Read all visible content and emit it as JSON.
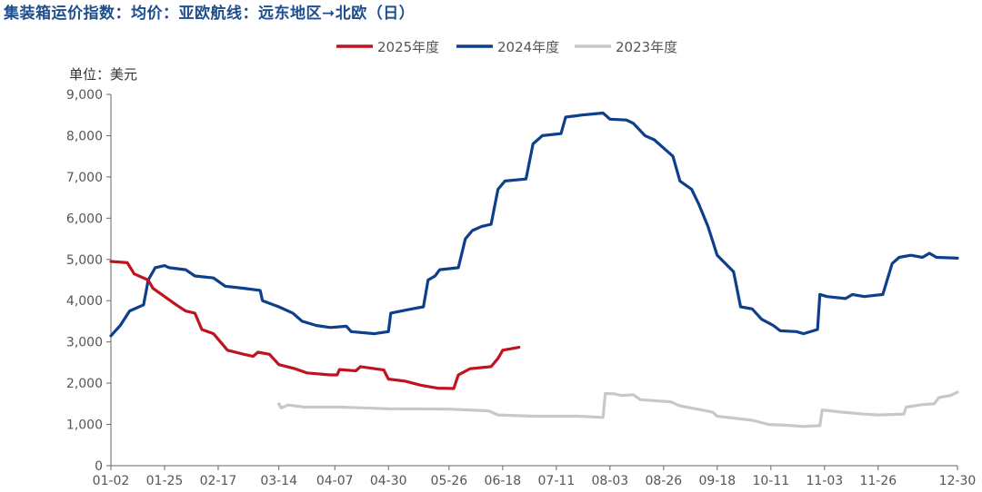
{
  "chart_data": {
    "type": "line",
    "title": "集装箱运价指数：均价：亚欧航线：远东地区➞北欧（日）",
    "unit": "单位：美元",
    "x_ticks": [
      "01-02",
      "01-25",
      "02-17",
      "03-14",
      "04-07",
      "04-30",
      "05-26",
      "06-18",
      "07-11",
      "08-03",
      "08-26",
      "09-18",
      "10-11",
      "11-03",
      "11-26",
      "12-30"
    ],
    "ylim": [
      0,
      9000
    ],
    "y_ticks": [
      "0",
      "1,000",
      "2,000",
      "3,000",
      "4,000",
      "5,000",
      "6,000",
      "7,000",
      "8,000",
      "9,000"
    ],
    "legend_position": "top-center",
    "grid": false,
    "series": [
      {
        "name": "2025年度",
        "color": "#c0121f",
        "points": [
          [
            "01-02",
            4950
          ],
          [
            "01-09",
            4920
          ],
          [
            "01-12",
            4650
          ],
          [
            "01-18",
            4500
          ],
          [
            "01-20",
            4300
          ],
          [
            "01-25",
            4100
          ],
          [
            "01-30",
            3900
          ],
          [
            "02-03",
            3750
          ],
          [
            "02-07",
            3700
          ],
          [
            "02-10",
            3300
          ],
          [
            "02-15",
            3200
          ],
          [
            "02-18",
            3000
          ],
          [
            "02-21",
            2800
          ],
          [
            "02-28",
            2700
          ],
          [
            "03-03",
            2650
          ],
          [
            "03-05",
            2750
          ],
          [
            "03-10",
            2700
          ],
          [
            "03-14",
            2450
          ],
          [
            "03-21",
            2350
          ],
          [
            "03-26",
            2250
          ],
          [
            "04-05",
            2200
          ],
          [
            "04-08",
            2200
          ],
          [
            "04-09",
            2330
          ],
          [
            "04-16",
            2300
          ],
          [
            "04-18",
            2400
          ],
          [
            "04-28",
            2320
          ],
          [
            "04-30",
            2100
          ],
          [
            "05-07",
            2050
          ],
          [
            "05-14",
            1950
          ],
          [
            "05-21",
            1880
          ],
          [
            "05-28",
            1870
          ],
          [
            "05-30",
            2200
          ],
          [
            "06-04",
            2350
          ],
          [
            "06-13",
            2400
          ],
          [
            "06-16",
            2600
          ],
          [
            "06-18",
            2800
          ],
          [
            "06-25",
            2870
          ]
        ]
      },
      {
        "name": "2024年度",
        "color": "#0e3f8a",
        "points": [
          [
            "01-02",
            3150
          ],
          [
            "01-06",
            3400
          ],
          [
            "01-10",
            3750
          ],
          [
            "01-16",
            3900
          ],
          [
            "01-18",
            4500
          ],
          [
            "01-21",
            4800
          ],
          [
            "01-25",
            4850
          ],
          [
            "01-27",
            4800
          ],
          [
            "02-03",
            4750
          ],
          [
            "02-07",
            4600
          ],
          [
            "02-15",
            4550
          ],
          [
            "02-20",
            4350
          ],
          [
            "02-28",
            4300
          ],
          [
            "03-06",
            4250
          ],
          [
            "03-07",
            4000
          ],
          [
            "03-14",
            3850
          ],
          [
            "03-20",
            3700
          ],
          [
            "03-24",
            3500
          ],
          [
            "03-30",
            3400
          ],
          [
            "04-05",
            3350
          ],
          [
            "04-12",
            3380
          ],
          [
            "04-14",
            3250
          ],
          [
            "04-24",
            3200
          ],
          [
            "04-30",
            3250
          ],
          [
            "05-01",
            3700
          ],
          [
            "05-10",
            3800
          ],
          [
            "05-15",
            3850
          ],
          [
            "05-17",
            4500
          ],
          [
            "05-20",
            4600
          ],
          [
            "05-22",
            4750
          ],
          [
            "05-30",
            4800
          ],
          [
            "06-02",
            5500
          ],
          [
            "06-05",
            5700
          ],
          [
            "06-09",
            5800
          ],
          [
            "06-13",
            5850
          ],
          [
            "06-16",
            6700
          ],
          [
            "06-19",
            6900
          ],
          [
            "06-28",
            6950
          ],
          [
            "07-01",
            7800
          ],
          [
            "07-05",
            8000
          ],
          [
            "07-13",
            8050
          ],
          [
            "07-15",
            8450
          ],
          [
            "07-22",
            8500
          ],
          [
            "07-31",
            8550
          ],
          [
            "08-03",
            8400
          ],
          [
            "08-10",
            8380
          ],
          [
            "08-13",
            8300
          ],
          [
            "08-18",
            8000
          ],
          [
            "08-22",
            7900
          ],
          [
            "08-26",
            7700
          ],
          [
            "08-30",
            7500
          ],
          [
            "09-02",
            6900
          ],
          [
            "09-07",
            6700
          ],
          [
            "09-10",
            6350
          ],
          [
            "09-14",
            5800
          ],
          [
            "09-18",
            5100
          ],
          [
            "09-25",
            4700
          ],
          [
            "09-28",
            3850
          ],
          [
            "10-03",
            3800
          ],
          [
            "10-07",
            3550
          ],
          [
            "10-12",
            3400
          ],
          [
            "10-15",
            3270
          ],
          [
            "10-22",
            3250
          ],
          [
            "10-25",
            3200
          ],
          [
            "10-31",
            3300
          ],
          [
            "11-01",
            4150
          ],
          [
            "11-04",
            4100
          ],
          [
            "11-12",
            4050
          ],
          [
            "11-15",
            4150
          ],
          [
            "11-20",
            4100
          ],
          [
            "11-28",
            4150
          ],
          [
            "12-02",
            4900
          ],
          [
            "12-05",
            5050
          ],
          [
            "12-10",
            5100
          ],
          [
            "12-15",
            5050
          ],
          [
            "12-18",
            5150
          ],
          [
            "12-21",
            5050
          ],
          [
            "12-30",
            5030
          ]
        ]
      },
      {
        "name": "2023年度",
        "color": "#c8c8c8",
        "points": [
          [
            "03-14",
            1500
          ],
          [
            "03-15",
            1400
          ],
          [
            "03-18",
            1470
          ],
          [
            "03-25",
            1420
          ],
          [
            "04-10",
            1420
          ],
          [
            "04-30",
            1380
          ],
          [
            "05-26",
            1370
          ],
          [
            "06-12",
            1330
          ],
          [
            "06-16",
            1230
          ],
          [
            "07-01",
            1200
          ],
          [
            "07-20",
            1200
          ],
          [
            "07-31",
            1170
          ],
          [
            "08-01",
            1750
          ],
          [
            "08-05",
            1740
          ],
          [
            "08-08",
            1700
          ],
          [
            "08-13",
            1720
          ],
          [
            "08-16",
            1600
          ],
          [
            "08-29",
            1550
          ],
          [
            "09-02",
            1450
          ],
          [
            "09-16",
            1300
          ],
          [
            "09-18",
            1200
          ],
          [
            "10-03",
            1100
          ],
          [
            "10-10",
            1000
          ],
          [
            "10-18",
            980
          ],
          [
            "10-25",
            950
          ],
          [
            "11-01",
            970
          ],
          [
            "11-02",
            1350
          ],
          [
            "11-10",
            1300
          ],
          [
            "11-20",
            1250
          ],
          [
            "11-26",
            1230
          ],
          [
            "12-07",
            1250
          ],
          [
            "12-08",
            1420
          ],
          [
            "12-15",
            1480
          ],
          [
            "12-20",
            1500
          ],
          [
            "12-22",
            1650
          ],
          [
            "12-27",
            1700
          ],
          [
            "12-30",
            1780
          ]
        ]
      }
    ]
  }
}
